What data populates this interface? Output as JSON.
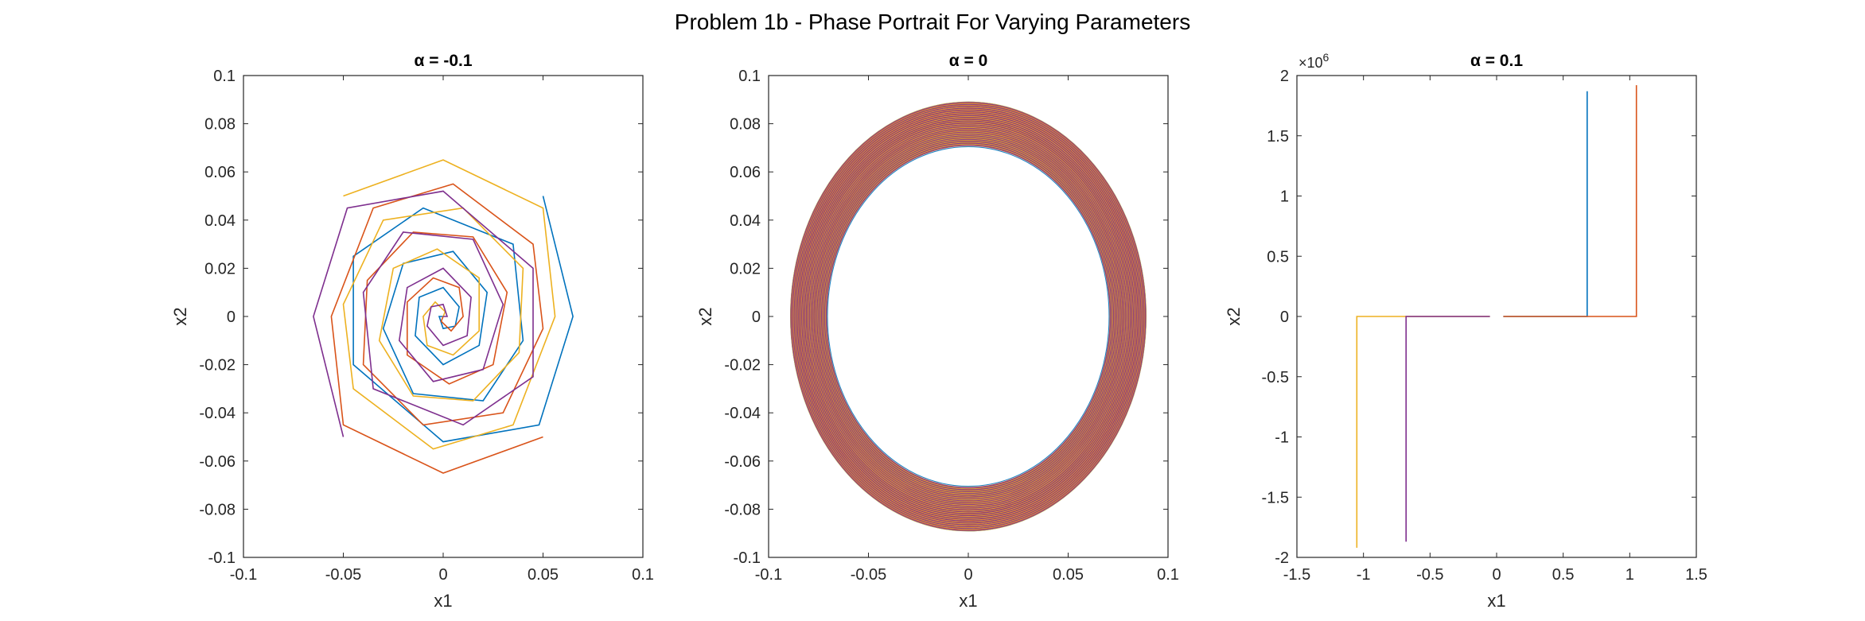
{
  "figure": {
    "title": "Problem 1b - Phase Portrait For Varying Parameters"
  },
  "colors": {
    "series": [
      "#0072BD",
      "#D95319",
      "#EDB120",
      "#7E2F8E"
    ],
    "axis": "#262626",
    "background": "#ffffff"
  },
  "chart_data": [
    {
      "type": "line",
      "title": "α = -0.1",
      "xlabel": "x1",
      "ylabel": "x2",
      "xlim": [
        -0.1,
        0.1
      ],
      "ylim": [
        -0.1,
        0.1
      ],
      "xticks": [
        "-0.1",
        "-0.05",
        "0",
        "0.05",
        "0.1"
      ],
      "yticks": [
        "-0.1",
        "-0.08",
        "-0.06",
        "-0.04",
        "-0.02",
        "0",
        "0.02",
        "0.04",
        "0.06",
        "0.08",
        "0.1"
      ],
      "grid": false,
      "series": [
        {
          "color": "#0072BD",
          "points": [
            [
              0.05,
              0.05
            ],
            [
              0.065,
              0.0
            ],
            [
              0.048,
              -0.045
            ],
            [
              0.0,
              -0.052
            ],
            [
              -0.045,
              -0.02
            ],
            [
              -0.045,
              0.025
            ],
            [
              -0.01,
              0.045
            ],
            [
              0.035,
              0.03
            ],
            [
              0.04,
              -0.01
            ],
            [
              0.02,
              -0.035
            ],
            [
              -0.015,
              -0.032
            ],
            [
              -0.03,
              -0.005
            ],
            [
              -0.02,
              0.022
            ],
            [
              0.005,
              0.027
            ],
            [
              0.022,
              0.01
            ],
            [
              0.018,
              -0.012
            ],
            [
              0.0,
              -0.02
            ],
            [
              -0.014,
              -0.008
            ],
            [
              -0.012,
              0.008
            ],
            [
              0.0,
              0.012
            ],
            [
              0.008,
              0.004
            ],
            [
              0.006,
              -0.004
            ],
            [
              0.0,
              -0.005
            ],
            [
              -0.002,
              0.0
            ],
            [
              0.0,
              0.0
            ]
          ]
        },
        {
          "color": "#D95319",
          "points": [
            [
              0.05,
              -0.05
            ],
            [
              0.0,
              -0.065
            ],
            [
              -0.05,
              -0.045
            ],
            [
              -0.056,
              0.0
            ],
            [
              -0.035,
              0.045
            ],
            [
              0.005,
              0.055
            ],
            [
              0.045,
              0.03
            ],
            [
              0.05,
              -0.005
            ],
            [
              0.03,
              -0.04
            ],
            [
              -0.01,
              -0.045
            ],
            [
              -0.04,
              -0.02
            ],
            [
              -0.038,
              0.015
            ],
            [
              -0.015,
              0.035
            ],
            [
              0.015,
              0.033
            ],
            [
              0.032,
              0.01
            ],
            [
              0.025,
              -0.02
            ],
            [
              0.003,
              -0.028
            ],
            [
              -0.018,
              -0.016
            ],
            [
              -0.018,
              0.006
            ],
            [
              -0.005,
              0.016
            ],
            [
              0.008,
              0.012
            ],
            [
              0.01,
              0.0
            ],
            [
              0.004,
              -0.006
            ],
            [
              -0.001,
              -0.002
            ],
            [
              0.0,
              0.0
            ]
          ]
        },
        {
          "color": "#EDB120",
          "points": [
            [
              -0.05,
              0.05
            ],
            [
              0.0,
              0.065
            ],
            [
              0.05,
              0.045
            ],
            [
              0.056,
              0.0
            ],
            [
              0.035,
              -0.045
            ],
            [
              -0.005,
              -0.055
            ],
            [
              -0.045,
              -0.03
            ],
            [
              -0.05,
              0.005
            ],
            [
              -0.03,
              0.04
            ],
            [
              0.01,
              0.045
            ],
            [
              0.04,
              0.02
            ],
            [
              0.038,
              -0.015
            ],
            [
              0.015,
              -0.035
            ],
            [
              -0.015,
              -0.033
            ],
            [
              -0.032,
              -0.01
            ],
            [
              -0.025,
              0.02
            ],
            [
              -0.003,
              0.028
            ],
            [
              0.018,
              0.016
            ],
            [
              0.018,
              -0.006
            ],
            [
              0.005,
              -0.016
            ],
            [
              -0.008,
              -0.012
            ],
            [
              -0.01,
              0.0
            ],
            [
              -0.004,
              0.006
            ],
            [
              0.001,
              0.002
            ],
            [
              0.0,
              0.0
            ]
          ]
        },
        {
          "color": "#7E2F8E",
          "points": [
            [
              -0.05,
              -0.05
            ],
            [
              -0.065,
              0.0
            ],
            [
              -0.048,
              0.045
            ],
            [
              0.0,
              0.052
            ],
            [
              0.045,
              0.02
            ],
            [
              0.045,
              -0.025
            ],
            [
              0.01,
              -0.045
            ],
            [
              -0.035,
              -0.03
            ],
            [
              -0.04,
              0.01
            ],
            [
              -0.02,
              0.035
            ],
            [
              0.015,
              0.032
            ],
            [
              0.03,
              0.005
            ],
            [
              0.02,
              -0.022
            ],
            [
              -0.005,
              -0.027
            ],
            [
              -0.022,
              -0.01
            ],
            [
              -0.018,
              0.012
            ],
            [
              0.0,
              0.02
            ],
            [
              0.014,
              0.008
            ],
            [
              0.012,
              -0.008
            ],
            [
              0.0,
              -0.012
            ],
            [
              -0.008,
              -0.004
            ],
            [
              -0.006,
              0.004
            ],
            [
              0.0,
              0.005
            ],
            [
              0.002,
              0.0
            ],
            [
              0.0,
              0.0
            ]
          ]
        }
      ]
    },
    {
      "type": "line",
      "title": "α = 0",
      "xlabel": "x1",
      "ylabel": "x2",
      "xlim": [
        -0.1,
        0.1
      ],
      "ylim": [
        -0.1,
        0.1
      ],
      "xticks": [
        "-0.1",
        "-0.05",
        "0",
        "0.05",
        "0.1"
      ],
      "yticks": [
        "-0.1",
        "-0.08",
        "-0.06",
        "-0.04",
        "-0.02",
        "0",
        "0.02",
        "0.04",
        "0.06",
        "0.08",
        "0.1"
      ],
      "grid": false,
      "series": [
        {
          "color": "#0072BD",
          "ellipse": {
            "cx": 0,
            "cy": 0,
            "rx_inner": 0.0705,
            "ry_inner": 0.0705,
            "rx_outer": 0.089,
            "ry_outer": 0.089
          }
        },
        {
          "color": "#D95319",
          "ellipse": {
            "cx": 0,
            "cy": 0,
            "rx_inner": 0.071,
            "ry_inner": 0.071,
            "rx_outer": 0.0885,
            "ry_outer": 0.0885
          }
        },
        {
          "color": "#EDB120",
          "ellipse": {
            "cx": 0,
            "cy": 0,
            "rx_inner": 0.0715,
            "ry_inner": 0.0715,
            "rx_outer": 0.089,
            "ry_outer": 0.089
          }
        },
        {
          "color": "#7E2F8E",
          "ellipse": {
            "cx": 0,
            "cy": 0,
            "rx_inner": 0.0712,
            "ry_inner": 0.0712,
            "rx_outer": 0.0888,
            "ry_outer": 0.0888
          }
        }
      ]
    },
    {
      "type": "line",
      "title": "α = 0.1",
      "xlabel": "x1",
      "ylabel": "x2",
      "xlim": [
        -1.5,
        1.5
      ],
      "ylim": [
        -2000000,
        2000000
      ],
      "y_exponent_label": "×10",
      "y_exponent_power": "6",
      "xticks": [
        "-1.5",
        "-1",
        "-0.5",
        "0",
        "0.5",
        "1",
        "1.5"
      ],
      "yticks": [
        "-2",
        "-1.5",
        "-1",
        "-0.5",
        "0",
        "0.5",
        "1",
        "1.5",
        "2"
      ],
      "grid": false,
      "series": [
        {
          "color": "#0072BD",
          "points": [
            [
              0.05,
              0.0
            ],
            [
              0.68,
              0.0
            ],
            [
              0.68,
              1870000
            ]
          ]
        },
        {
          "color": "#D95319",
          "points": [
            [
              0.05,
              0.0
            ],
            [
              1.05,
              0.0
            ],
            [
              1.05,
              1920000
            ]
          ]
        },
        {
          "color": "#EDB120",
          "points": [
            [
              -0.05,
              0.0
            ],
            [
              -1.05,
              0.0
            ],
            [
              -1.05,
              -1920000
            ]
          ]
        },
        {
          "color": "#7E2F8E",
          "points": [
            [
              -0.05,
              0.0
            ],
            [
              -0.68,
              0.0
            ],
            [
              -0.68,
              -1870000
            ]
          ]
        }
      ]
    }
  ]
}
